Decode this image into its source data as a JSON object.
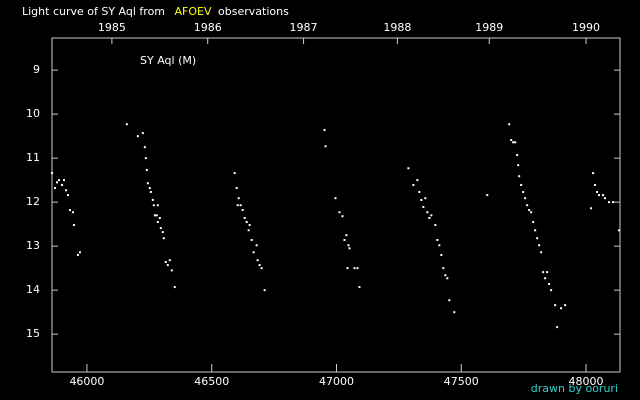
{
  "chart_data": {
    "type": "scatter",
    "title_parts": [
      {
        "text": "Light curve of SY Aql from",
        "color": "#ffffff"
      },
      {
        "text": "AFOEV",
        "color": "#ffff00"
      },
      {
        "text": "observations",
        "color": "#ffffff"
      }
    ],
    "annotation": "SY Aql (M)",
    "credit": "drawn by ooruri",
    "credit_color": "#33cccc",
    "color": "#ffffff",
    "background": "#000000",
    "xlim": [
      45860,
      48136
    ],
    "xticks": [
      46000,
      46500,
      47000,
      47500,
      48000
    ],
    "x2ticks": [
      {
        "value": 46100,
        "label": "1985"
      },
      {
        "value": 46484,
        "label": "1986"
      },
      {
        "value": 46868,
        "label": "1987"
      },
      {
        "value": 47244,
        "label": "1988"
      },
      {
        "value": 47612,
        "label": "1989"
      },
      {
        "value": 48000,
        "label": "1990"
      }
    ],
    "ylim": [
      15.86,
      8.27
    ],
    "yticks": [
      9,
      10,
      11,
      12,
      13,
      14,
      15
    ],
    "x": [
      45860,
      45872,
      45880,
      45888,
      45900,
      45908,
      45916,
      45924,
      45932,
      45944,
      45948,
      45964,
      45972,
      46160,
      46204,
      46224,
      46232,
      46236,
      46240,
      46244,
      46252,
      46256,
      46264,
      46268,
      46272,
      46280,
      46284,
      46284,
      46292,
      46296,
      46304,
      46308,
      46316,
      46324,
      46332,
      46340,
      46352,
      46592,
      46600,
      46604,
      46608,
      46616,
      46624,
      46632,
      46640,
      46648,
      46652,
      46660,
      46668,
      46680,
      46684,
      46692,
      46700,
      46712,
      46952,
      46956,
      46996,
      47012,
      47024,
      47032,
      47040,
      47044,
      47048,
      47052,
      47072,
      47084,
      47092,
      47288,
      47308,
      47324,
      47332,
      47340,
      47348,
      47356,
      47364,
      47372,
      47380,
      47396,
      47404,
      47412,
      47420,
      47428,
      47436,
      47444,
      47452,
      47472,
      47604,
      47692,
      47700,
      47708,
      47716,
      47724,
      47728,
      47732,
      47740,
      47748,
      47756,
      47764,
      47772,
      47780,
      47788,
      47796,
      47804,
      47812,
      47820,
      47828,
      47836,
      47844,
      47852,
      47860,
      47876,
      47884,
      47900,
      47916,
      48020,
      48028,
      48036,
      48044,
      48052,
      48068,
      48076,
      48092,
      48108,
      48132
    ],
    "values": [
      11.34,
      11.68,
      11.55,
      11.5,
      11.61,
      11.5,
      11.73,
      11.84,
      12.18,
      12.23,
      12.52,
      13.2,
      13.14,
      10.23,
      10.5,
      10.43,
      10.75,
      11.0,
      11.27,
      11.57,
      11.68,
      11.77,
      11.95,
      12.07,
      12.3,
      12.3,
      12.45,
      12.07,
      12.36,
      12.59,
      12.68,
      12.82,
      13.36,
      13.43,
      13.32,
      13.55,
      13.93,
      11.34,
      11.68,
      12.07,
      11.91,
      12.07,
      12.18,
      12.36,
      12.45,
      12.64,
      12.52,
      12.86,
      13.14,
      12.98,
      13.32,
      13.43,
      13.5,
      14.0,
      10.36,
      10.73,
      11.91,
      12.23,
      12.32,
      12.86,
      12.75,
      13.5,
      12.98,
      13.05,
      13.5,
      13.5,
      13.93,
      11.23,
      11.61,
      11.5,
      11.77,
      11.95,
      12.11,
      11.91,
      12.23,
      12.36,
      12.3,
      12.52,
      12.86,
      12.98,
      13.2,
      13.5,
      13.66,
      13.73,
      14.23,
      14.5,
      11.84,
      10.23,
      10.59,
      10.64,
      10.64,
      10.93,
      11.16,
      11.41,
      11.61,
      11.77,
      11.91,
      12.07,
      12.18,
      12.23,
      12.45,
      12.64,
      12.82,
      12.98,
      13.14,
      13.59,
      13.73,
      13.59,
      13.86,
      14.0,
      14.34,
      14.84,
      14.41,
      14.34,
      12.14,
      11.34,
      11.61,
      11.77,
      11.84,
      11.84,
      11.91,
      12.0,
      12.0,
      12.64
    ]
  }
}
